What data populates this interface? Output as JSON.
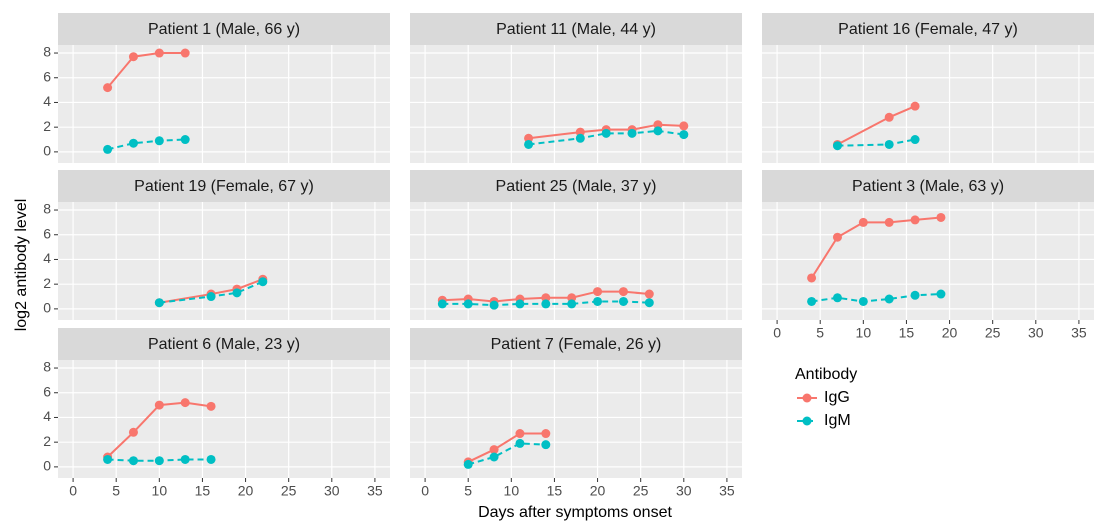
{
  "xlabel": "Days after symptoms onset",
  "ylabel": "log2 antibody level",
  "legend_title": "Antibody",
  "chart_data": [
    {
      "type": "line",
      "title": "Patient 1 (Male, 66 y)",
      "xlim": [
        -1.75,
        36.75
      ],
      "xticks": [
        0,
        5,
        10,
        15,
        20,
        25,
        30,
        35
      ],
      "ylim": [
        -0.9,
        8.65
      ],
      "yticks": [
        0,
        2,
        4,
        6,
        8
      ],
      "grid": true,
      "series": [
        {
          "name": "IgG",
          "color": "#F8766D",
          "linestyle": "solid",
          "x": [
            4,
            7,
            10,
            13
          ],
          "values": [
            5.2,
            7.7,
            8.0,
            8.0
          ]
        },
        {
          "name": "IgM",
          "color": "#00BFC4",
          "linestyle": "dashed",
          "x": [
            4,
            7,
            10,
            13
          ],
          "values": [
            0.2,
            0.7,
            0.9,
            1.0
          ]
        }
      ]
    },
    {
      "type": "line",
      "title": "Patient 11 (Male, 44 y)",
      "xlim": [
        -1.75,
        36.75
      ],
      "xticks": [
        0,
        5,
        10,
        15,
        20,
        25,
        30,
        35
      ],
      "ylim": [
        -0.9,
        8.65
      ],
      "yticks": [
        0,
        2,
        4,
        6,
        8
      ],
      "grid": true,
      "series": [
        {
          "name": "IgG",
          "color": "#F8766D",
          "linestyle": "solid",
          "x": [
            12,
            18,
            21,
            24,
            27,
            30
          ],
          "values": [
            1.1,
            1.6,
            1.8,
            1.8,
            2.2,
            2.1
          ]
        },
        {
          "name": "IgM",
          "color": "#00BFC4",
          "linestyle": "dashed",
          "x": [
            12,
            18,
            21,
            24,
            27,
            30
          ],
          "values": [
            0.6,
            1.1,
            1.5,
            1.5,
            1.7,
            1.4
          ]
        }
      ]
    },
    {
      "type": "line",
      "title": "Patient 16 (Female, 47 y)",
      "xlim": [
        -1.75,
        36.75
      ],
      "xticks": [
        0,
        5,
        10,
        15,
        20,
        25,
        30,
        35
      ],
      "ylim": [
        -0.9,
        8.65
      ],
      "yticks": [
        0,
        2,
        4,
        6,
        8
      ],
      "grid": true,
      "series": [
        {
          "name": "IgG",
          "color": "#F8766D",
          "linestyle": "solid",
          "x": [
            7,
            13,
            16
          ],
          "values": [
            0.6,
            2.8,
            3.7
          ]
        },
        {
          "name": "IgM",
          "color": "#00BFC4",
          "linestyle": "dashed",
          "x": [
            7,
            13,
            16
          ],
          "values": [
            0.5,
            0.6,
            1.0
          ]
        }
      ]
    },
    {
      "type": "line",
      "title": "Patient 19 (Female, 67 y)",
      "xlim": [
        -1.75,
        36.75
      ],
      "xticks": [
        0,
        5,
        10,
        15,
        20,
        25,
        30,
        35
      ],
      "ylim": [
        -0.9,
        8.65
      ],
      "yticks": [
        0,
        2,
        4,
        6,
        8
      ],
      "grid": true,
      "series": [
        {
          "name": "IgG",
          "color": "#F8766D",
          "linestyle": "solid",
          "x": [
            10,
            16,
            19,
            22
          ],
          "values": [
            0.5,
            1.2,
            1.6,
            2.4
          ]
        },
        {
          "name": "IgM",
          "color": "#00BFC4",
          "linestyle": "dashed",
          "x": [
            10,
            16,
            19,
            22
          ],
          "values": [
            0.5,
            1.0,
            1.3,
            2.2
          ]
        }
      ]
    },
    {
      "type": "line",
      "title": "Patient 25 (Male, 37 y)",
      "xlim": [
        -1.75,
        36.75
      ],
      "xticks": [
        0,
        5,
        10,
        15,
        20,
        25,
        30,
        35
      ],
      "ylim": [
        -0.9,
        8.65
      ],
      "yticks": [
        0,
        2,
        4,
        6,
        8
      ],
      "grid": true,
      "series": [
        {
          "name": "IgG",
          "color": "#F8766D",
          "linestyle": "solid",
          "x": [
            2,
            5,
            8,
            11,
            14,
            17,
            20,
            23,
            26
          ],
          "values": [
            0.7,
            0.8,
            0.6,
            0.8,
            0.9,
            0.9,
            1.4,
            1.4,
            1.2
          ]
        },
        {
          "name": "IgM",
          "color": "#00BFC4",
          "linestyle": "dashed",
          "x": [
            2,
            5,
            8,
            11,
            14,
            17,
            20,
            23,
            26
          ],
          "values": [
            0.4,
            0.4,
            0.3,
            0.4,
            0.4,
            0.4,
            0.6,
            0.6,
            0.5
          ]
        }
      ]
    },
    {
      "type": "line",
      "title": "Patient 3 (Male, 63 y)",
      "xlim": [
        -1.75,
        36.75
      ],
      "xticks": [
        0,
        5,
        10,
        15,
        20,
        25,
        30,
        35
      ],
      "ylim": [
        -0.9,
        8.65
      ],
      "yticks": [
        0,
        2,
        4,
        6,
        8
      ],
      "grid": true,
      "series": [
        {
          "name": "IgG",
          "color": "#F8766D",
          "linestyle": "solid",
          "x": [
            4,
            7,
            10,
            13,
            16,
            19
          ],
          "values": [
            2.5,
            5.8,
            7.0,
            7.0,
            7.2,
            7.4
          ]
        },
        {
          "name": "IgM",
          "color": "#00BFC4",
          "linestyle": "dashed",
          "x": [
            4,
            7,
            10,
            13,
            16,
            19
          ],
          "values": [
            0.6,
            0.9,
            0.6,
            0.8,
            1.1,
            1.2
          ]
        }
      ]
    },
    {
      "type": "line",
      "title": "Patient 6 (Male, 23 y)",
      "xlim": [
        -1.75,
        36.75
      ],
      "xticks": [
        0,
        5,
        10,
        15,
        20,
        25,
        30,
        35
      ],
      "ylim": [
        -0.9,
        8.65
      ],
      "yticks": [
        0,
        2,
        4,
        6,
        8
      ],
      "grid": true,
      "series": [
        {
          "name": "IgG",
          "color": "#F8766D",
          "linestyle": "solid",
          "x": [
            4,
            7,
            10,
            13,
            16
          ],
          "values": [
            0.8,
            2.8,
            5.0,
            5.2,
            4.9
          ]
        },
        {
          "name": "IgM",
          "color": "#00BFC4",
          "linestyle": "dashed",
          "x": [
            4,
            7,
            10,
            13,
            16
          ],
          "values": [
            0.6,
            0.5,
            0.5,
            0.6,
            0.6
          ]
        }
      ]
    },
    {
      "type": "line",
      "title": "Patient 7 (Female, 26 y)",
      "xlim": [
        -1.75,
        36.75
      ],
      "xticks": [
        0,
        5,
        10,
        15,
        20,
        25,
        30,
        35
      ],
      "ylim": [
        -0.9,
        8.65
      ],
      "yticks": [
        0,
        2,
        4,
        6,
        8
      ],
      "grid": true,
      "series": [
        {
          "name": "IgG",
          "color": "#F8766D",
          "linestyle": "solid",
          "x": [
            5,
            8,
            11,
            14
          ],
          "values": [
            0.4,
            1.4,
            2.7,
            2.7
          ]
        },
        {
          "name": "IgM",
          "color": "#00BFC4",
          "linestyle": "dashed",
          "x": [
            5,
            8,
            11,
            14
          ],
          "values": [
            0.2,
            0.8,
            1.9,
            1.8
          ]
        }
      ]
    }
  ]
}
